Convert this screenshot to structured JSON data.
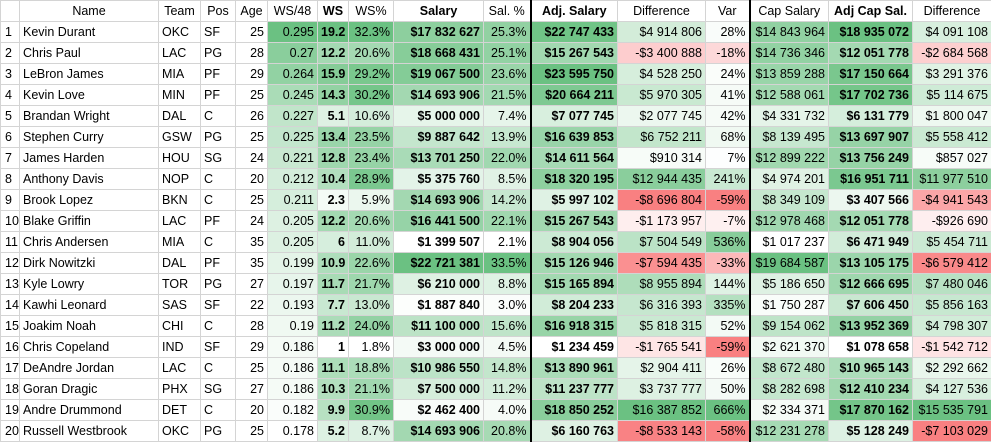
{
  "headers": [
    "",
    "Name",
    "Team",
    "Pos",
    "Age",
    "WS/48",
    "WS",
    "WS%",
    "Salary",
    "Sal. %",
    "Adj. Salary",
    "Difference",
    "Var",
    "Cap Salary",
    "Adj Cap Sal.",
    "Difference"
  ],
  "rows": [
    [
      "1",
      "Kevin Durant",
      "OKC",
      "SF",
      "25",
      "0.295",
      "19.2",
      "32.3%",
      "$17 832 627",
      "25.3%",
      "$22 747 433",
      "$4 914 806",
      "28%",
      "$14 843 964",
      "$18 935 072",
      "$4 091 108"
    ],
    [
      "2",
      "Chris Paul",
      "LAC",
      "PG",
      "28",
      "0.27",
      "12.2",
      "20.6%",
      "$18 668 431",
      "25.1%",
      "$15 267 543",
      "-$3 400 888",
      "-18%",
      "$14 736 346",
      "$12 051 778",
      "-$2 684 568"
    ],
    [
      "3",
      "LeBron James",
      "MIA",
      "PF",
      "29",
      "0.264",
      "15.9",
      "29.2%",
      "$19 067 500",
      "23.6%",
      "$23 595 750",
      "$4 528 250",
      "24%",
      "$13 859 288",
      "$17 150 664",
      "$3 291 376"
    ],
    [
      "4",
      "Kevin Love",
      "MIN",
      "PF",
      "25",
      "0.245",
      "14.3",
      "30.2%",
      "$14 693 906",
      "21.5%",
      "$20 664 211",
      "$5 970 305",
      "41%",
      "$12 588 061",
      "$17 702 736",
      "$5 114 675"
    ],
    [
      "5",
      "Brandan Wright",
      "DAL",
      "C",
      "26",
      "0.227",
      "5.1",
      "10.6%",
      "$5 000 000",
      "7.4%",
      "$7 077 745",
      "$2 077 745",
      "42%",
      "$4 331 732",
      "$6 131 779",
      "$1 800 047"
    ],
    [
      "6",
      "Stephen Curry",
      "GSW",
      "PG",
      "25",
      "0.225",
      "13.4",
      "23.5%",
      "$9 887 642",
      "13.9%",
      "$16 639 853",
      "$6 752 211",
      "68%",
      "$8 139 495",
      "$13 697 907",
      "$5 558 412"
    ],
    [
      "7",
      "James Harden",
      "HOU",
      "SG",
      "24",
      "0.221",
      "12.8",
      "23.4%",
      "$13 701 250",
      "22.0%",
      "$14 611 564",
      "$910 314",
      "7%",
      "$12 899 222",
      "$13 756 249",
      "$857 027"
    ],
    [
      "8",
      "Anthony Davis",
      "NOP",
      "C",
      "20",
      "0.212",
      "10.4",
      "28.9%",
      "$5 375 760",
      "8.5%",
      "$18 320 195",
      "$12 944 435",
      "241%",
      "$4 974 201",
      "$16 951 711",
      "$11 977 510"
    ],
    [
      "9",
      "Brook Lopez",
      "BKN",
      "C",
      "25",
      "0.211",
      "2.3",
      "5.9%",
      "$14 693 906",
      "14.2%",
      "$5 997 102",
      "-$8 696 804",
      "-59%",
      "$8 349 109",
      "$3 407 566",
      "-$4 941 543"
    ],
    [
      "10",
      "Blake Griffin",
      "LAC",
      "PF",
      "24",
      "0.205",
      "12.2",
      "20.6%",
      "$16 441 500",
      "22.1%",
      "$15 267 543",
      "-$1 173 957",
      "-7%",
      "$12 978 468",
      "$12 051 778",
      "-$926 690"
    ],
    [
      "11",
      "Chris Andersen",
      "MIA",
      "C",
      "35",
      "0.205",
      "6",
      "11.0%",
      "$1 399 507",
      "2.1%",
      "$8 904 056",
      "$7 504 549",
      "536%",
      "$1 017 237",
      "$6 471 949",
      "$5 454 711"
    ],
    [
      "12",
      "Dirk Nowitzki",
      "DAL",
      "PF",
      "35",
      "0.199",
      "10.9",
      "22.6%",
      "$22 721 381",
      "33.5%",
      "$15 126 946",
      "-$7 594 435",
      "-33%",
      "$19 684 587",
      "$13 105 175",
      "-$6 579 412"
    ],
    [
      "13",
      "Kyle Lowry",
      "TOR",
      "PG",
      "27",
      "0.197",
      "11.7",
      "21.7%",
      "$6 210 000",
      "8.8%",
      "$15 165 894",
      "$8 955 894",
      "144%",
      "$5 186 650",
      "$12 666 695",
      "$7 480 046"
    ],
    [
      "14",
      "Kawhi Leonard",
      "SAS",
      "SF",
      "22",
      "0.193",
      "7.7",
      "13.0%",
      "$1 887 840",
      "3.0%",
      "$8 204 233",
      "$6 316 393",
      "335%",
      "$1 750 287",
      "$7 606 450",
      "$5 856 163"
    ],
    [
      "15",
      "Joakim Noah",
      "CHI",
      "C",
      "28",
      "0.19",
      "11.2",
      "24.0%",
      "$11 100 000",
      "15.6%",
      "$16 918 315",
      "$5 818 315",
      "52%",
      "$9 154 062",
      "$13 952 369",
      "$4 798 307"
    ],
    [
      "16",
      "Chris Copeland",
      "IND",
      "SF",
      "29",
      "0.186",
      "1",
      "1.8%",
      "$3 000 000",
      "4.5%",
      "$1 234 459",
      "-$1 765 541",
      "-59%",
      "$2 621 370",
      "$1 078 658",
      "-$1 542 712"
    ],
    [
      "17",
      "DeAndre Jordan",
      "LAC",
      "C",
      "25",
      "0.186",
      "11.1",
      "18.8%",
      "$10 986 550",
      "14.8%",
      "$13 890 961",
      "$2 904 411",
      "26%",
      "$8 672 480",
      "$10 965 143",
      "$2 292 662"
    ],
    [
      "18",
      "Goran Dragic",
      "PHX",
      "SG",
      "27",
      "0.186",
      "10.3",
      "21.1%",
      "$7 500 000",
      "11.2%",
      "$11 237 777",
      "$3 737 777",
      "50%",
      "$8 282 698",
      "$12 410 234",
      "$4 127 536"
    ],
    [
      "19",
      "Andre Drummond",
      "DET",
      "C",
      "20",
      "0.182",
      "9.9",
      "30.9%",
      "$2 462 400",
      "4.0%",
      "$18 850 252",
      "$16 387 852",
      "666%",
      "$2 334 371",
      "$17 870 162",
      "$15 535 791"
    ],
    [
      "20",
      "Russell Westbrook",
      "OKC",
      "PG",
      "25",
      "0.178",
      "5.2",
      "8.7%",
      "$14 693 906",
      "20.8%",
      "$6 160 763",
      "-$8 533 143",
      "-58%",
      "$12 231 278",
      "$5 128 249",
      "-$7 103 029"
    ]
  ],
  "colors": {
    "heat_high": "#63be7b",
    "heat_low": "#ffffff",
    "negative": "#f8696b"
  }
}
